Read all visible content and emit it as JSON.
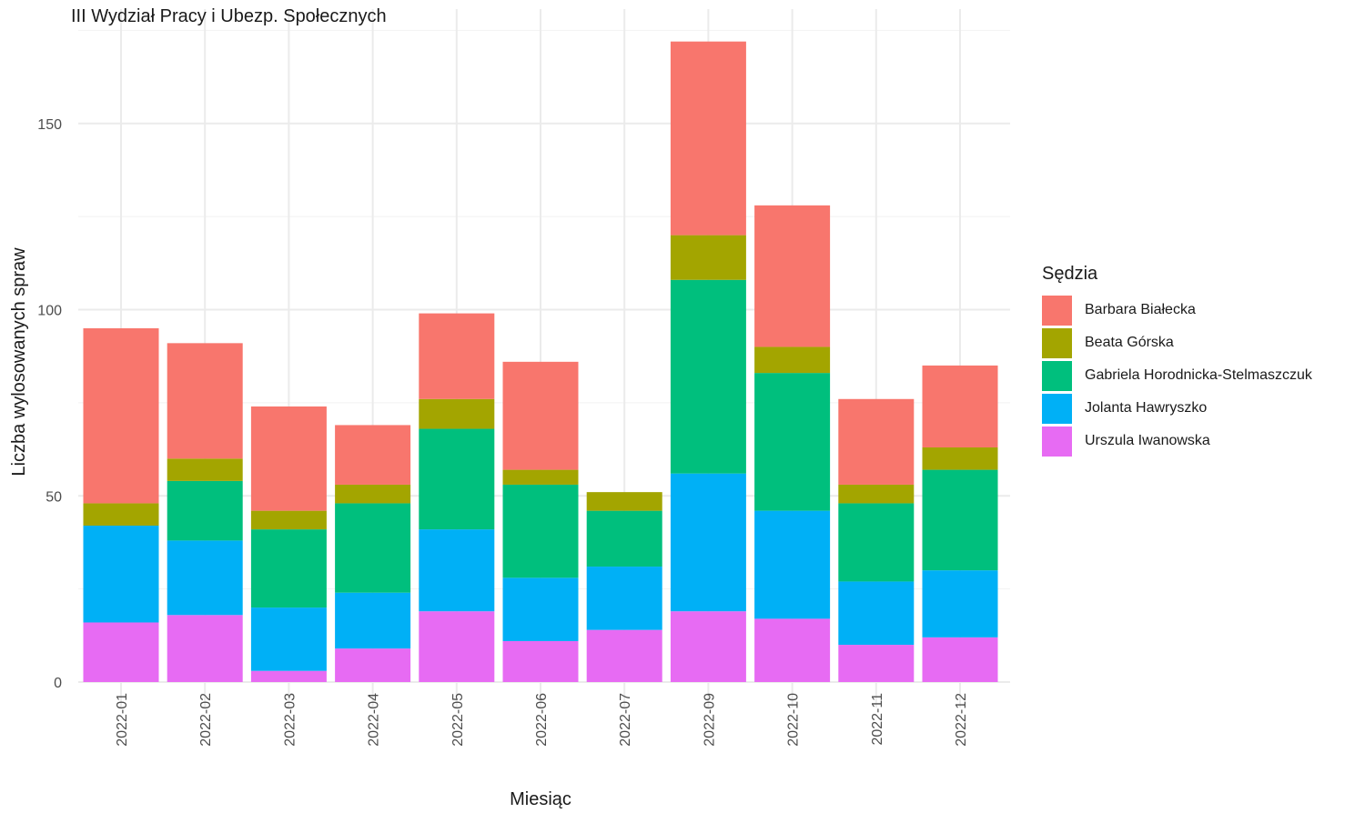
{
  "chart_data": {
    "type": "bar",
    "stacked": true,
    "title": "III Wydział Pracy i Ubezp. Społecznych",
    "xlabel": "Miesiąc",
    "ylabel": "Liczba wylosowanych spraw",
    "ylim": [
      0,
      175
    ],
    "yticks": [
      0,
      50,
      100,
      150
    ],
    "grid": true,
    "legend_title": "Sędzia",
    "legend_position": "right",
    "categories": [
      "2022-01",
      "2022-02",
      "2022-03",
      "2022-04",
      "2022-05",
      "2022-06",
      "2022-07",
      "2022-09",
      "2022-10",
      "2022-11",
      "2022-12"
    ],
    "series": [
      {
        "name": "Barbara Białecka",
        "color": "#F8766D",
        "values": [
          47,
          31,
          28,
          16,
          23,
          29,
          0,
          52,
          38,
          23,
          22
        ]
      },
      {
        "name": "Beata Górska",
        "color": "#A3A500",
        "values": [
          6,
          6,
          5,
          5,
          8,
          4,
          5,
          12,
          7,
          5,
          6
        ]
      },
      {
        "name": "Gabriela Horodnicka-Stelmaszczuk",
        "color": "#00BF7D",
        "values": [
          0,
          16,
          21,
          24,
          27,
          25,
          15,
          52,
          37,
          21,
          27
        ]
      },
      {
        "name": "Jolanta Hawryszko",
        "color": "#00B0F6",
        "values": [
          26,
          20,
          17,
          15,
          22,
          17,
          17,
          37,
          29,
          17,
          18
        ]
      },
      {
        "name": "Urszula Iwanowska",
        "color": "#E76BF3",
        "values": [
          16,
          18,
          3,
          9,
          19,
          11,
          14,
          19,
          17,
          10,
          12
        ]
      }
    ]
  }
}
